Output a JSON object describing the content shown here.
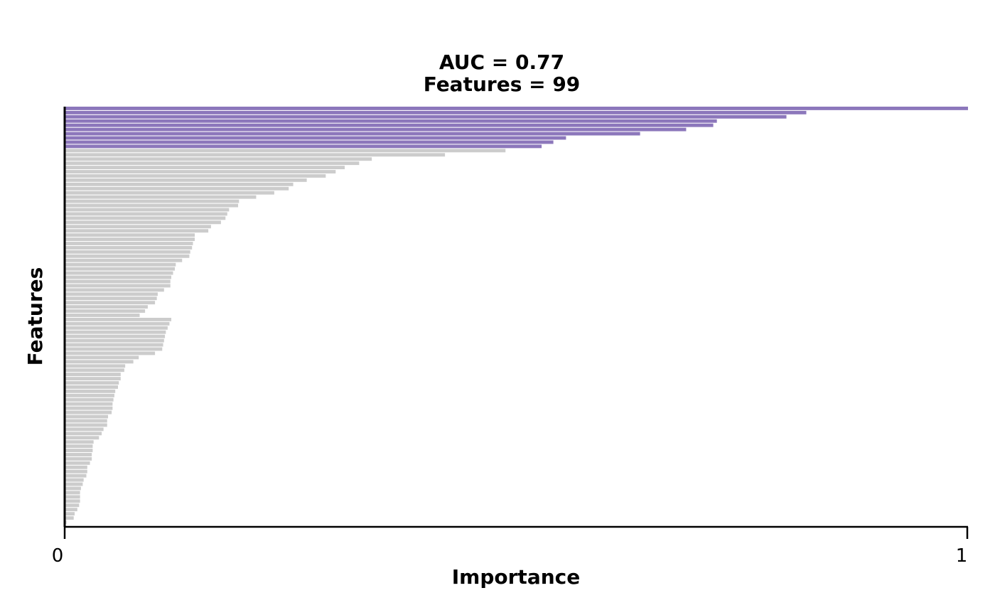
{
  "colors": {
    "highlight": "#8c77bb",
    "default": "#cccccc",
    "axis": "#000000"
  },
  "chart_data": {
    "type": "bar",
    "orientation": "horizontal",
    "title_lines": [
      "AUC = 0.77",
      "Features = 99"
    ],
    "xlabel": "Importance",
    "ylabel": "Features",
    "xlim": [
      0,
      1
    ],
    "x_ticks": [
      "0",
      "1"
    ],
    "grid": false,
    "legend": "none",
    "highlighted_count": 10,
    "values": [
      1.0,
      0.821,
      0.799,
      0.722,
      0.718,
      0.688,
      0.637,
      0.555,
      0.541,
      0.528,
      0.488,
      0.421,
      0.34,
      0.326,
      0.31,
      0.3,
      0.289,
      0.268,
      0.253,
      0.248,
      0.232,
      0.212,
      0.193,
      0.192,
      0.182,
      0.18,
      0.178,
      0.173,
      0.162,
      0.159,
      0.144,
      0.144,
      0.142,
      0.141,
      0.139,
      0.138,
      0.13,
      0.123,
      0.122,
      0.12,
      0.118,
      0.117,
      0.117,
      0.11,
      0.103,
      0.102,
      0.1,
      0.092,
      0.089,
      0.083,
      0.118,
      0.116,
      0.114,
      0.112,
      0.111,
      0.11,
      0.109,
      0.108,
      0.1,
      0.082,
      0.076,
      0.067,
      0.066,
      0.062,
      0.062,
      0.06,
      0.059,
      0.056,
      0.055,
      0.054,
      0.053,
      0.053,
      0.052,
      0.048,
      0.047,
      0.047,
      0.043,
      0.041,
      0.038,
      0.032,
      0.031,
      0.031,
      0.03,
      0.03,
      0.028,
      0.025,
      0.025,
      0.024,
      0.021,
      0.02,
      0.018,
      0.017,
      0.017,
      0.017,
      0.016,
      0.014,
      0.011,
      0.01,
      0.002
    ]
  }
}
